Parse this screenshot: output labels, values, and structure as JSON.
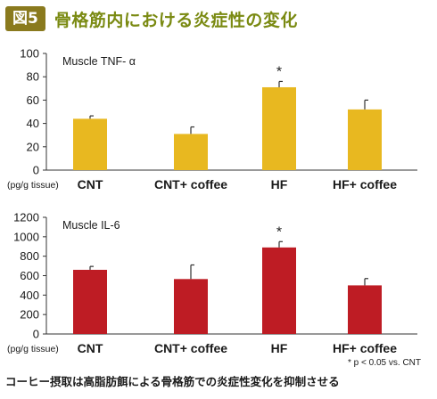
{
  "figure": {
    "badge": "図5",
    "title": "骨格筋内における炎症性の変化"
  },
  "chart_data": [
    {
      "type": "bar",
      "title": "Muscle TNF- α",
      "unit": "(pg/g tissue)",
      "categories": [
        "CNT",
        "CNT+ coffee",
        "HF",
        "HF+ coffee"
      ],
      "values": [
        44,
        31,
        71,
        52
      ],
      "errors": [
        2.5,
        6,
        5,
        8
      ],
      "significance": [
        "",
        "",
        "*",
        ""
      ],
      "ylim": [
        0,
        100
      ],
      "yticks": [
        0,
        20,
        40,
        60,
        80,
        100
      ],
      "color": "#E8B820"
    },
    {
      "type": "bar",
      "title": "Muscle IL-6",
      "unit": "(pg/g tissue)",
      "categories": [
        "CNT",
        "CNT+ coffee",
        "HF",
        "HF+ coffee"
      ],
      "values": [
        660,
        565,
        890,
        500
      ],
      "errors": [
        35,
        145,
        60,
        70
      ],
      "significance": [
        "",
        "",
        "*",
        ""
      ],
      "ylim": [
        0,
        1200
      ],
      "yticks": [
        0,
        200,
        400,
        600,
        800,
        1000,
        1200
      ],
      "color": "#BE1C24"
    }
  ],
  "footnote": "* p < 0.05 vs. CNT",
  "caption": "コーヒー摂取は高脂肪餌による骨格筋での炎症性変化を抑制させる"
}
